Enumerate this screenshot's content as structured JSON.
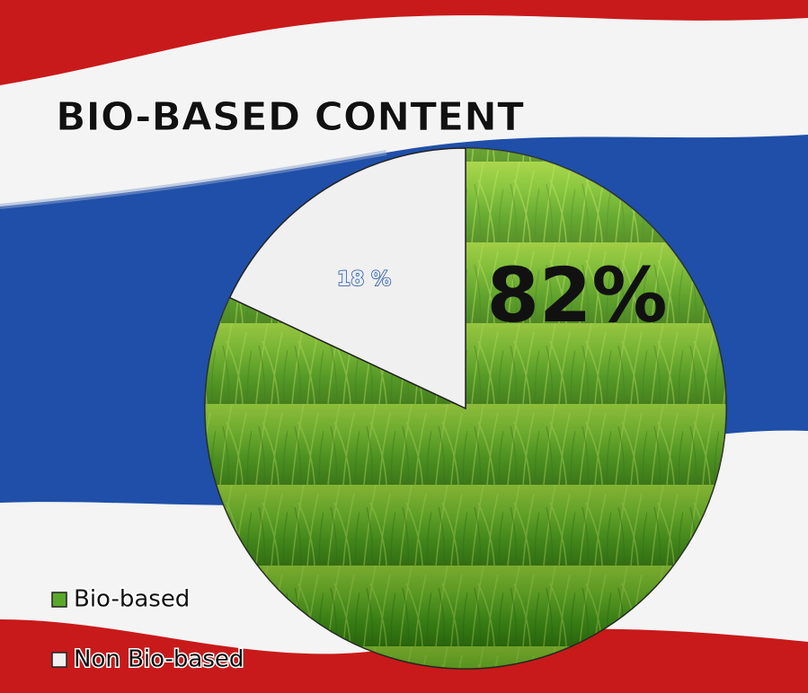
{
  "chart_data": {
    "type": "pie",
    "title": "BIO-BASED CONTENT",
    "categories": [
      "Bio-based",
      "Non Bio-based"
    ],
    "values": [
      82,
      18
    ],
    "value_labels": [
      "82%",
      "18 %"
    ],
    "colors": [
      "#5aa82a",
      "#f0f0f0"
    ],
    "legend": "bottom-left"
  }
}
